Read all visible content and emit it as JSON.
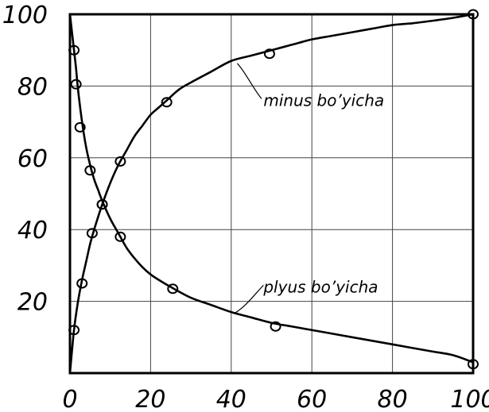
{
  "chart_data": {
    "type": "line",
    "xlim": [
      0,
      100
    ],
    "ylim": [
      0,
      100
    ],
    "grid": true,
    "x_ticks": [
      "0",
      "20",
      "40",
      "60",
      "80",
      "100"
    ],
    "y_ticks": [
      "20",
      "40",
      "60",
      "80",
      "100"
    ],
    "series": [
      {
        "name": "minus bo'yicha",
        "curve": [
          [
            0,
            0
          ],
          [
            1,
            12
          ],
          [
            2,
            20
          ],
          [
            3,
            26
          ],
          [
            4,
            31
          ],
          [
            5,
            36
          ],
          [
            6,
            40
          ],
          [
            8,
            47
          ],
          [
            10,
            53
          ],
          [
            12,
            58
          ],
          [
            14,
            62
          ],
          [
            16,
            66
          ],
          [
            18,
            69
          ],
          [
            20,
            72
          ],
          [
            22,
            74
          ],
          [
            24,
            76
          ],
          [
            27,
            79
          ],
          [
            30,
            81
          ],
          [
            35,
            84
          ],
          [
            40,
            87
          ],
          [
            45,
            88.5
          ],
          [
            50,
            90
          ],
          [
            55,
            91.5
          ],
          [
            60,
            93
          ],
          [
            65,
            94
          ],
          [
            70,
            95
          ],
          [
            75,
            96
          ],
          [
            80,
            97
          ],
          [
            85,
            97.5
          ],
          [
            90,
            98.2
          ],
          [
            95,
            99
          ],
          [
            100,
            100
          ]
        ],
        "points": [
          [
            1,
            12
          ],
          [
            3,
            25
          ],
          [
            5.5,
            39
          ],
          [
            8,
            47
          ],
          [
            12.5,
            59
          ],
          [
            24,
            75.5
          ],
          [
            49.5,
            89
          ],
          [
            100,
            100
          ]
        ]
      },
      {
        "name": "plyus bo'yicha",
        "curve": [
          [
            0,
            100
          ],
          [
            0.5,
            95
          ],
          [
            1,
            90
          ],
          [
            1.5,
            85
          ],
          [
            2,
            79
          ],
          [
            3,
            70
          ],
          [
            4,
            63
          ],
          [
            5,
            58
          ],
          [
            6,
            54
          ],
          [
            7,
            51
          ],
          [
            8,
            48
          ],
          [
            10,
            43
          ],
          [
            12,
            39
          ],
          [
            14,
            35
          ],
          [
            16,
            32
          ],
          [
            18,
            29.5
          ],
          [
            20,
            27.5
          ],
          [
            22,
            26
          ],
          [
            25,
            24
          ],
          [
            30,
            21
          ],
          [
            35,
            19
          ],
          [
            40,
            17
          ],
          [
            45,
            15.5
          ],
          [
            50,
            14
          ],
          [
            55,
            13
          ],
          [
            60,
            12
          ],
          [
            65,
            11
          ],
          [
            70,
            10
          ],
          [
            75,
            9
          ],
          [
            80,
            8
          ],
          [
            85,
            7
          ],
          [
            90,
            6
          ],
          [
            95,
            5
          ],
          [
            100,
            3
          ]
        ],
        "points": [
          [
            1,
            90
          ],
          [
            1.5,
            80.5
          ],
          [
            2.5,
            68.5
          ],
          [
            5,
            56.5
          ],
          [
            8,
            47
          ],
          [
            12.5,
            38
          ],
          [
            25.5,
            23.5
          ],
          [
            51,
            13
          ],
          [
            100,
            2.5
          ]
        ]
      }
    ],
    "annotations": [
      {
        "text": "minus bo’yicha",
        "x": 48,
        "y": 76
      },
      {
        "text": "plyus bo’yicha",
        "x": 48,
        "y": 24
      }
    ]
  }
}
